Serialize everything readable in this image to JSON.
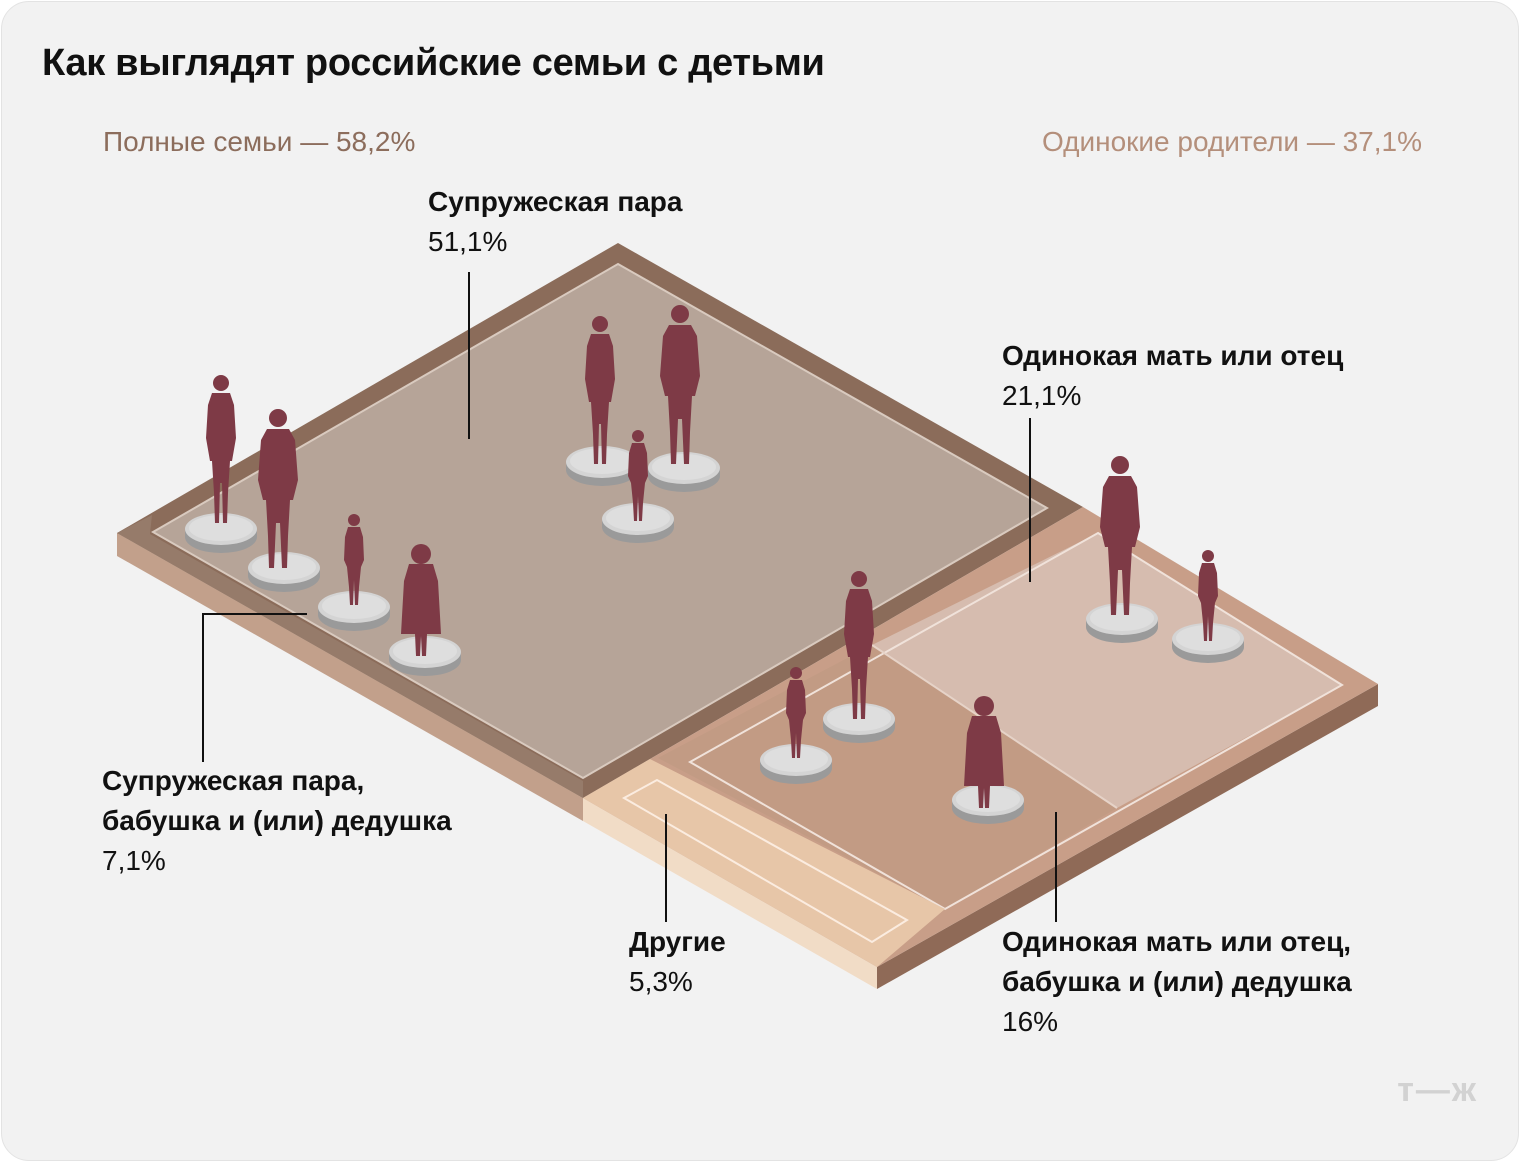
{
  "title": "Как выглядят российские семьи с детьми",
  "groups": {
    "full": "Полные семьи — 58,2%",
    "single": "Одинокие родители — 37,1%"
  },
  "segments": {
    "couple": {
      "label": "Супружеская пара",
      "value": "51,1%"
    },
    "couple_grand": {
      "label_line1": "Супружеская пара,",
      "label_line2": "бабушка и (или) дедушка",
      "value": "7,1%"
    },
    "single": {
      "label": "Одинокая мать или отец",
      "value": "21,1%"
    },
    "single_grand": {
      "label_line1": "Одинокая мать или отец,",
      "label_line2": "бабушка и (или) дедушка",
      "value": "16%"
    },
    "other": {
      "label": "Другие",
      "value": "5,3%"
    }
  },
  "brand": "т—ж",
  "colors": {
    "figure": "#7e3a46",
    "couple_floor": "#b6a498",
    "couple_frame": "#8b6c5a",
    "single_floor": "#d6bcaf",
    "single_frame": "#c89e88",
    "other_floor": "#e7c6a8"
  }
}
